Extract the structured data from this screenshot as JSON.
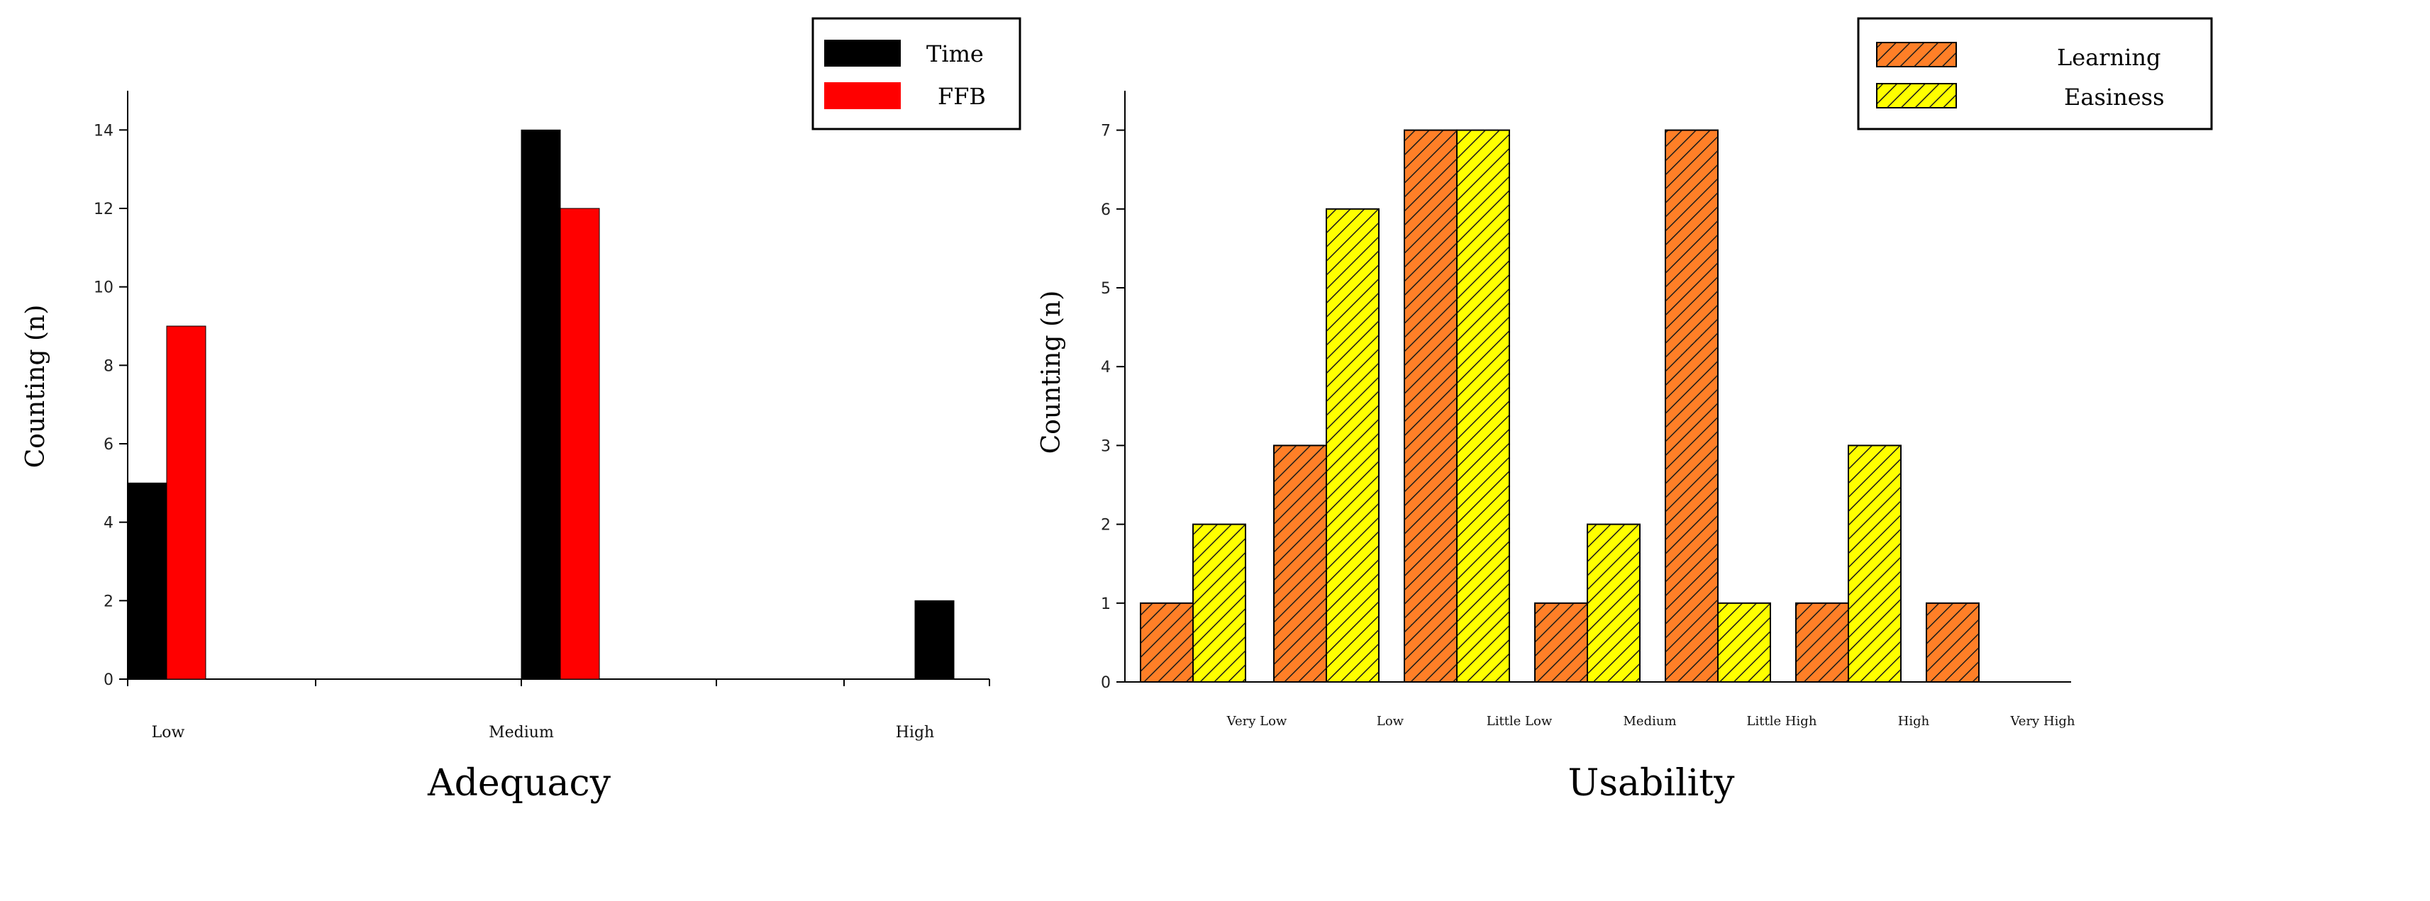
{
  "chart_data": [
    {
      "type": "bar",
      "title": "Adequacy",
      "ylabel": "Counting (n)",
      "xlabel": "",
      "ylim": [
        0,
        15
      ],
      "yticks": [
        0,
        2,
        4,
        6,
        8,
        10,
        12,
        14
      ],
      "categories": [
        "Low",
        "Medium",
        "High"
      ],
      "series": [
        {
          "name": "Time",
          "values": [
            5,
            14,
            2
          ],
          "color": "#000000"
        },
        {
          "name": "FFB",
          "values": [
            9,
            12,
            0
          ],
          "color": "#ff0000"
        }
      ],
      "legend_position": "top-right"
    },
    {
      "type": "bar",
      "title": "Usability",
      "ylabel": "Counting (n)",
      "xlabel": "",
      "ylim": [
        0,
        7.5
      ],
      "yticks": [
        0,
        1,
        2,
        3,
        4,
        5,
        6,
        7
      ],
      "categories": [
        "Very Low",
        "Low",
        "Little Low",
        "Medium",
        "Little High",
        "High",
        "Very High"
      ],
      "series": [
        {
          "name": "Learning",
          "values": [
            1,
            3,
            7,
            1,
            7,
            1,
            1
          ],
          "color": "#ff7f27",
          "hatch": "diagonal"
        },
        {
          "name": "Easiness",
          "values": [
            2,
            6,
            7,
            2,
            1,
            3,
            0
          ],
          "color": "#ffff00",
          "hatch": "diagonal"
        }
      ],
      "legend_position": "top-right"
    }
  ]
}
